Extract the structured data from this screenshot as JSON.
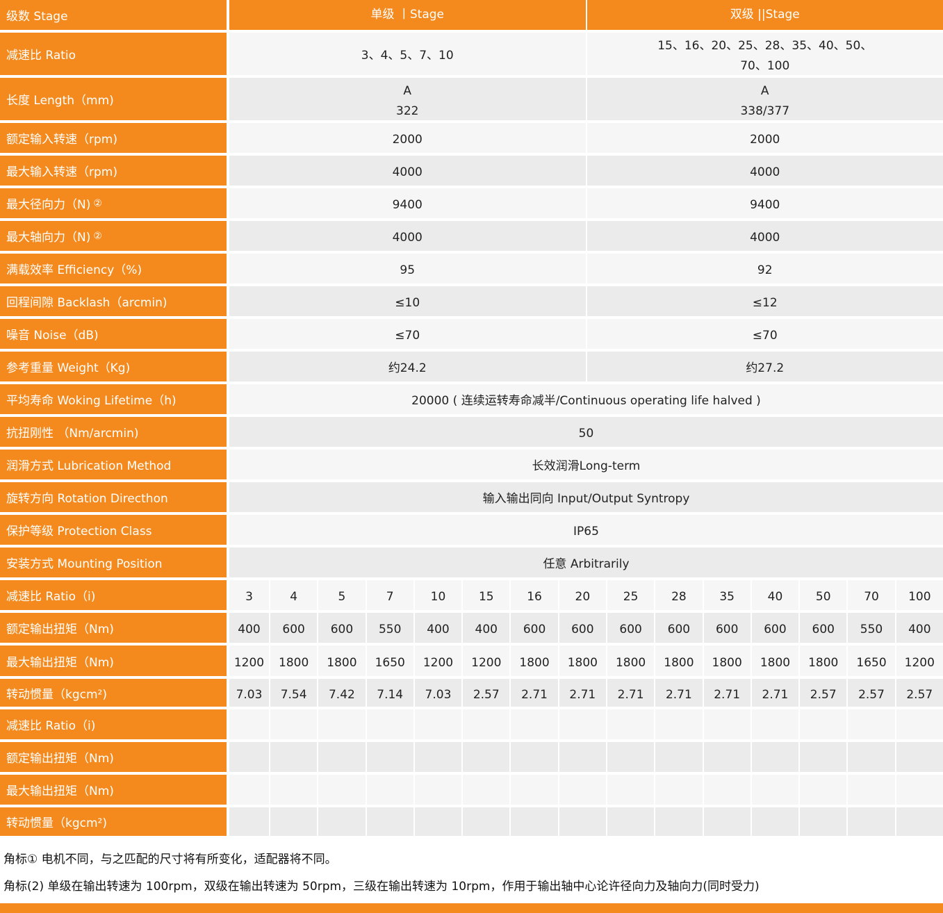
{
  "accent": "#f48a1d",
  "header": {
    "label": "级数 Stage",
    "single": "单级 丨Stage",
    "double": "双级 ||Stage"
  },
  "rows": [
    {
      "label": "减速比 Ratio",
      "h": 61,
      "vals": [
        [
          "3、4、5、7、10"
        ],
        [
          "15、16、20、25、28、35、40、50、",
          "70、100"
        ]
      ]
    },
    {
      "label": "长度 Length（mm)",
      "h": 61,
      "vals": [
        [
          "A",
          "322"
        ],
        [
          "A",
          "338/377"
        ]
      ]
    },
    {
      "label": "额定输入转速（rpm)",
      "h": 43,
      "vals": [
        [
          "2000"
        ],
        [
          "2000"
        ]
      ]
    },
    {
      "label": "最大输入转速（rpm)",
      "h": 43,
      "vals": [
        [
          "4000"
        ],
        [
          "4000"
        ]
      ]
    },
    {
      "label": "最大径向力（N)",
      "note": "②",
      "h": 43,
      "vals": [
        [
          "9400"
        ],
        [
          "9400"
        ]
      ]
    },
    {
      "label": "最大轴向力（N)",
      "note": "②",
      "h": 43,
      "vals": [
        [
          "4000"
        ],
        [
          "4000"
        ]
      ]
    },
    {
      "label": "满载效率 Efficiency（%)",
      "h": 43,
      "vals": [
        [
          "95"
        ],
        [
          "92"
        ]
      ]
    },
    {
      "label": "回程间隙 Backlash（arcmin)",
      "h": 43,
      "vals": [
        [
          "≤10"
        ],
        [
          "≤12"
        ]
      ]
    },
    {
      "label": "噪音 Noise（dB)",
      "h": 43,
      "vals": [
        [
          "≤70"
        ],
        [
          "≤70"
        ]
      ]
    },
    {
      "label": "参考重量 Weight（Kg)",
      "h": 43,
      "vals": [
        [
          "约24.2"
        ],
        [
          "约27.2"
        ]
      ]
    },
    {
      "label": "平均寿命 Woking Lifetime（h)",
      "h": 43,
      "vals": [
        [
          "20000 ( 连续运转寿命减半/Continuous operating life halved )"
        ]
      ]
    },
    {
      "label": "抗扭刚性 （Nm/arcmin)",
      "h": 43,
      "vals": [
        [
          "50"
        ]
      ]
    },
    {
      "label": "润滑方式 Lubrication Method",
      "h": 43,
      "vals": [
        [
          "长效润滑Long-term"
        ]
      ]
    },
    {
      "label": "旋转方向 Rotation Directhon",
      "h": 43,
      "vals": [
        [
          "输入输出同向 Input/Output Syntropy"
        ]
      ]
    },
    {
      "label": "保护等级 Protection Class",
      "h": 43,
      "vals": [
        [
          "IP65"
        ]
      ]
    },
    {
      "label": "安装方式 Mounting Position",
      "h": 43,
      "vals": [
        [
          "任意 Arbitrarily"
        ]
      ]
    }
  ],
  "grid": [
    {
      "label": "减速比 Ratio（i)",
      "vals": [
        "3",
        "4",
        "5",
        "7",
        "10",
        "15",
        "16",
        "20",
        "25",
        "28",
        "35",
        "40",
        "50",
        "70",
        "100"
      ]
    },
    {
      "label": "额定输出扭矩（Nm)",
      "vals": [
        "400",
        "600",
        "600",
        "550",
        "400",
        "400",
        "600",
        "600",
        "600",
        "600",
        "600",
        "600",
        "600",
        "550",
        "400"
      ]
    },
    {
      "label": "最大输出扭矩（Nm)",
      "vals": [
        "1200",
        "1800",
        "1800",
        "1650",
        "1200",
        "1200",
        "1800",
        "1800",
        "1800",
        "1800",
        "1800",
        "1800",
        "1800",
        "1650",
        "1200"
      ]
    },
    {
      "label": "转动惯量（kgcm²)",
      "vals": [
        "7.03",
        "7.54",
        "7.42",
        "7.14",
        "7.03",
        "2.57",
        "2.71",
        "2.71",
        "2.71",
        "2.71",
        "2.71",
        "2.71",
        "2.57",
        "2.57",
        "2.57"
      ]
    },
    {
      "label": "减速比 Ratio（i)",
      "vals": [
        "",
        "",
        "",
        "",
        "",
        "",
        "",
        "",
        "",
        "",
        "",
        "",
        "",
        "",
        ""
      ]
    },
    {
      "label": "额定输出扭矩（Nm)",
      "vals": [
        "",
        "",
        "",
        "",
        "",
        "",
        "",
        "",
        "",
        "",
        "",
        "",
        "",
        "",
        ""
      ]
    },
    {
      "label": "最大输出扭矩（Nm)",
      "vals": [
        "",
        "",
        "",
        "",
        "",
        "",
        "",
        "",
        "",
        "",
        "",
        "",
        "",
        "",
        ""
      ]
    },
    {
      "label": "转动惯量（kgcm²)",
      "vals": [
        "",
        "",
        "",
        "",
        "",
        "",
        "",
        "",
        "",
        "",
        "",
        "",
        "",
        "",
        ""
      ]
    }
  ],
  "notes": [
    "角标① 电机不同，与之匹配的尺寸将有所变化，适配器将不同。",
    "角标(2) 单级在输出转速为 100rpm，双级在输出转速为 50rpm，三级在输出转速为 10rpm，作用于输出轴中心论许径向力及轴向力(同时受力)"
  ]
}
